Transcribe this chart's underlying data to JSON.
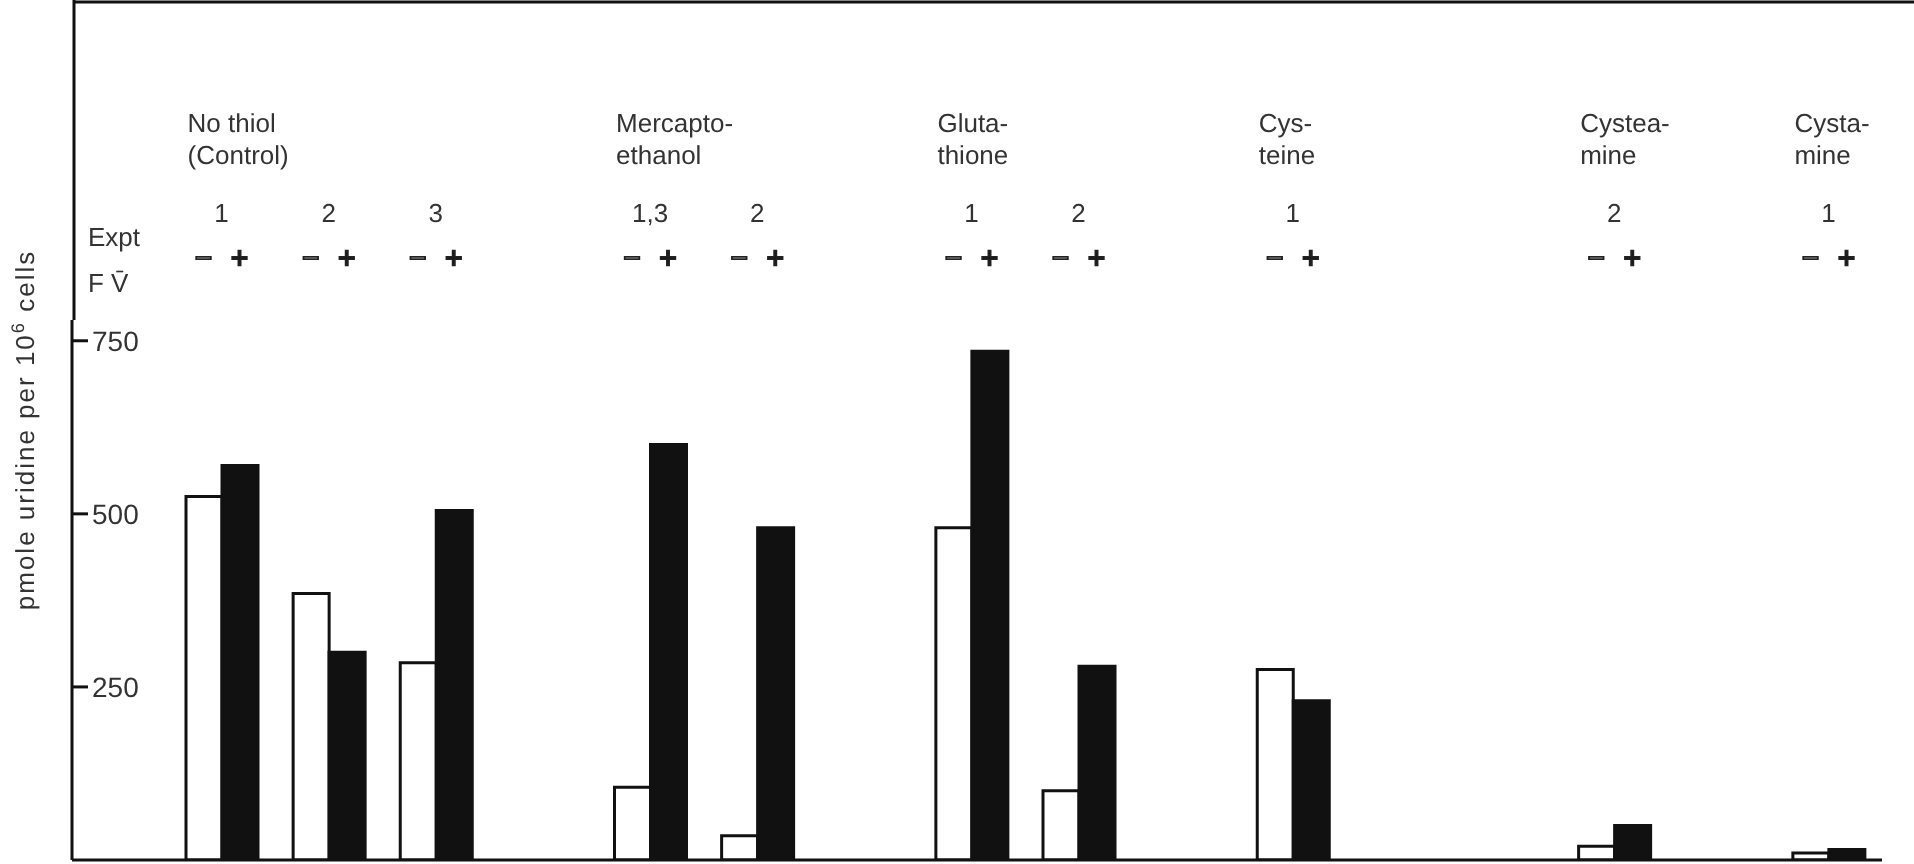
{
  "chart_data": {
    "type": "bar",
    "ylabel": "pmole uridine per 10$^{6}$ cells",
    "xlabel": "Expt",
    "legend_title": "F V̄",
    "annotations": [
      "No thiol\n(Control)",
      "Mercapto-\nethanol",
      "Gluta-\nthione",
      "Cys-\nteine",
      "Cystea-\nmine",
      "Cysta-\nmine"
    ],
    "categories": [
      "1",
      "2",
      "3",
      null,
      "1,3",
      "2",
      null,
      "1",
      "2",
      null,
      "1",
      null,
      null,
      "2",
      null,
      "1"
    ],
    "series": [
      {
        "name": "−",
        "color": "#ffffff",
        "values": [
          525,
          385,
          285,
          null,
          105,
          35,
          null,
          480,
          100,
          null,
          275,
          null,
          null,
          20,
          null,
          10
        ]
      },
      {
        "name": "+",
        "color": "#111111",
        "values": [
          570,
          300,
          505,
          null,
          600,
          480,
          null,
          735,
          280,
          null,
          230,
          null,
          null,
          50,
          null,
          15
        ]
      }
    ],
    "ylim": [
      0,
      780
    ],
    "yticks": [
      250,
      500,
      750
    ]
  }
}
